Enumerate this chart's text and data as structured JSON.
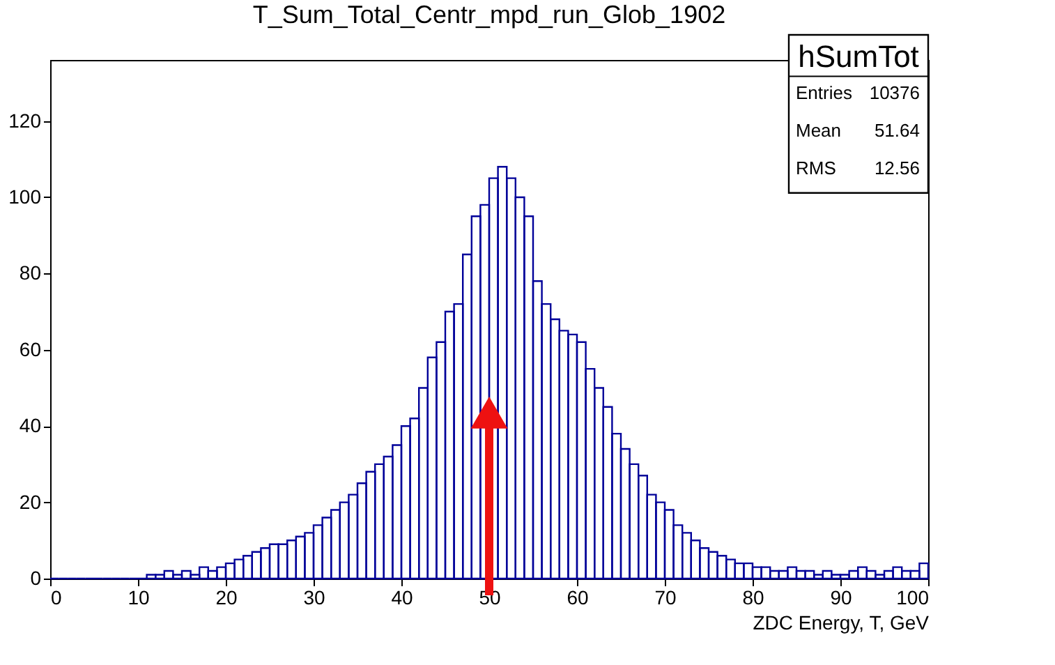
{
  "chart_data": {
    "type": "histogram",
    "title": "T_Sum_Total_Centr_mpd_run_Glob_1902",
    "xlabel": "ZDC Energy, T, GeV",
    "bins": [
      0,
      1,
      2,
      3,
      4,
      5,
      6,
      7,
      8,
      9,
      10,
      11,
      12,
      13,
      14,
      15,
      16,
      17,
      18,
      19,
      20,
      21,
      22,
      23,
      24,
      25,
      26,
      27,
      28,
      29,
      30,
      31,
      32,
      33,
      34,
      35,
      36,
      37,
      38,
      39,
      40,
      41,
      42,
      43,
      44,
      45,
      46,
      47,
      48,
      49,
      50,
      51,
      52,
      53,
      54,
      55,
      56,
      57,
      58,
      59,
      60,
      61,
      62,
      63,
      64,
      65,
      66,
      67,
      68,
      69,
      70,
      71,
      72,
      73,
      74,
      75,
      76,
      77,
      78,
      79,
      80,
      81,
      82,
      83,
      84,
      85,
      86,
      87,
      88,
      89,
      90,
      91,
      92,
      93,
      94,
      95,
      96,
      97,
      98,
      99,
      100
    ],
    "values": [
      0,
      0,
      0,
      0,
      0,
      0,
      0,
      0,
      0,
      0,
      0,
      1,
      1,
      2,
      1,
      2,
      1,
      3,
      2,
      3,
      4,
      5,
      6,
      7,
      8,
      9,
      9,
      10,
      11,
      12,
      14,
      16,
      18,
      20,
      22,
      25,
      28,
      30,
      32,
      35,
      40,
      42,
      50,
      58,
      62,
      70,
      72,
      85,
      95,
      98,
      105,
      108,
      105,
      100,
      95,
      78,
      72,
      68,
      65,
      64,
      62,
      55,
      50,
      45,
      38,
      34,
      30,
      27,
      22,
      20,
      18,
      14,
      12,
      10,
      8,
      7,
      6,
      5,
      4,
      4,
      3,
      3,
      2,
      2,
      3,
      2,
      2,
      1,
      2,
      1,
      1,
      2,
      3,
      2,
      1,
      2,
      3,
      2,
      2,
      4
    ],
    "color": "#000099",
    "xlim": [
      0,
      100
    ],
    "xticks": [
      0,
      10,
      20,
      30,
      40,
      50,
      60,
      70,
      80,
      90,
      100
    ],
    "ylim": [
      0,
      136
    ],
    "yticks": [
      0,
      20,
      40,
      60,
      80,
      100,
      120
    ],
    "grid": false,
    "annotations": [
      "hSumTot",
      "Entries 10376",
      "Mean 51.64",
      "RMS 12.56"
    ]
  }
}
